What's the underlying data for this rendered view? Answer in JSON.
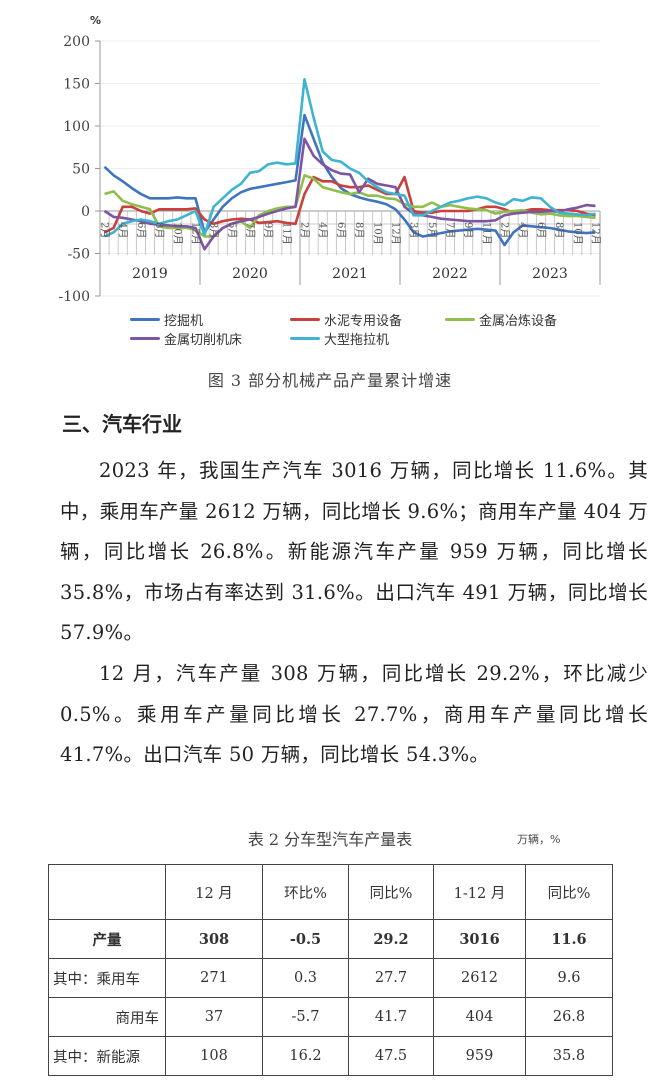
{
  "chart_data": {
    "type": "line",
    "ylabel": "%",
    "ylim": [
      -100,
      200
    ],
    "yticks": [
      200,
      150,
      100,
      50,
      0,
      -50,
      -100
    ],
    "years": [
      "2019",
      "2020",
      "2021",
      "2022",
      "2023"
    ],
    "months": [
      2,
      3,
      4,
      5,
      6,
      7,
      8,
      9,
      10,
      11,
      12
    ],
    "month_tick_labels": {
      "2019": [
        "2",
        "4",
        "6",
        "8",
        "10",
        "12"
      ],
      "2020": [
        "3",
        "5",
        "7",
        "9",
        "11"
      ],
      "2021": [
        "2",
        "4",
        "6",
        "8",
        "10",
        "12"
      ],
      "2022": [
        "3",
        "5",
        "7",
        "9",
        "11"
      ],
      "2023": [
        "2",
        "4",
        "6",
        "8",
        "10",
        "12"
      ]
    },
    "grid": true,
    "legend_placement": "bottom",
    "series": [
      {
        "name": "挖掘机",
        "color": "#3f74c1",
        "values": [
          52,
          42,
          35,
          27,
          20,
          15,
          15,
          15,
          16,
          15,
          15,
          -25,
          -10,
          5,
          15,
          22,
          26,
          28,
          30,
          32,
          34,
          36,
          113,
          85,
          57,
          40,
          27,
          20,
          16,
          13,
          11,
          8,
          2,
          -10,
          -25,
          -30,
          -28,
          -26,
          -24,
          -23,
          -22,
          -21,
          -22,
          -23,
          -40,
          -25,
          -17,
          -18,
          -19,
          -20,
          -22,
          -24,
          -25,
          -26,
          -25
        ]
      },
      {
        "name": "水泥专用设备",
        "color": "#c9403c",
        "values": [
          -25,
          -20,
          5,
          5,
          0,
          -3,
          2,
          2,
          2,
          2,
          3,
          -10,
          -15,
          -12,
          -10,
          -9,
          -10,
          -14,
          -13,
          -12,
          -14,
          -15,
          20,
          40,
          35,
          35,
          30,
          28,
          28,
          30,
          25,
          20,
          20,
          40,
          0,
          -2,
          -2,
          0,
          0,
          0,
          0,
          2,
          5,
          5,
          2,
          -2,
          0,
          2,
          2,
          1,
          1,
          1,
          0,
          -3,
          -5
        ]
      },
      {
        "name": "金属冶炼设备",
        "color": "#8fbf4a",
        "values": [
          20,
          23,
          12,
          8,
          5,
          2,
          -18,
          -20,
          -20,
          -20,
          -22,
          -30,
          -30,
          -20,
          -15,
          -12,
          -20,
          -5,
          0,
          3,
          5,
          5,
          42,
          38,
          28,
          25,
          22,
          20,
          22,
          18,
          18,
          15,
          14,
          8,
          5,
          5,
          10,
          5,
          7,
          5,
          3,
          2,
          1,
          -3,
          -1,
          0,
          1,
          -2,
          -4,
          -3,
          -5,
          -6,
          -6,
          -7,
          -8
        ]
      },
      {
        "name": "金属切削机床",
        "color": "#7e55a3",
        "values": [
          0,
          -7,
          -8,
          -10,
          -12,
          -15,
          -16,
          -17,
          -18,
          -18,
          -20,
          -45,
          -30,
          -20,
          -15,
          -12,
          -10,
          -7,
          -3,
          0,
          3,
          5,
          85,
          65,
          55,
          48,
          44,
          43,
          22,
          38,
          32,
          30,
          28,
          5,
          -3,
          -5,
          -7,
          -9,
          -10,
          -11,
          -12,
          -12,
          -12,
          -11,
          -5,
          -3,
          -2,
          -1,
          -1,
          0,
          -1,
          2,
          4,
          7,
          6
        ]
      },
      {
        "name": "大型拖拉机",
        "color": "#3fb3cf",
        "values": [
          -30,
          -25,
          -15,
          -12,
          -10,
          -12,
          -15,
          -12,
          -10,
          -5,
          0,
          -28,
          5,
          15,
          25,
          32,
          45,
          47,
          55,
          57,
          55,
          56,
          155,
          110,
          70,
          60,
          58,
          50,
          45,
          35,
          28,
          22,
          20,
          18,
          -5,
          -5,
          0,
          5,
          10,
          12,
          15,
          17,
          15,
          10,
          7,
          14,
          12,
          16,
          15,
          5,
          -2,
          -3,
          -4,
          -5,
          -3
        ]
      }
    ]
  },
  "figure_caption": "图 3 部分机械产品产量累计增速",
  "section_heading": "三、汽车行业",
  "paragraphs": [
    "2023 年，我国生产汽车 3016 万辆，同比增长 11.6%。其中，乘用车产量 2612 万辆，同比增长 9.6%；商用车产量 404 万辆，同比增长 26.8%。新能源汽车产量 959 万辆，同比增长 35.8%，市场占有率达到 31.6%。出口汽车 491 万辆，同比增长 57.9%。",
    "12 月，汽车产量 308 万辆，同比增长 29.2%，环比减少 0.5%。乘用车产量同比增长 27.7%，商用车产量同比增长 41.7%。出口汽车 50 万辆，同比增长 54.3%。"
  ],
  "table": {
    "caption": "表 2 分车型汽车产量表",
    "unit": "万辆，%",
    "headers": [
      "",
      "12 月",
      "环比%",
      "同比%",
      "1-12 月",
      "同比%"
    ],
    "rows": [
      [
        "产量",
        "308",
        "-0.5",
        "29.2",
        "3016",
        "11.6"
      ],
      [
        "其中：乘用车",
        "271",
        "0.3",
        "27.7",
        "2612",
        "9.6"
      ],
      [
        "商用车",
        "37",
        "-5.7",
        "41.7",
        "404",
        "26.8"
      ],
      [
        "其中：新能源",
        "108",
        "16.2",
        "47.5",
        "959",
        "35.8"
      ]
    ]
  }
}
